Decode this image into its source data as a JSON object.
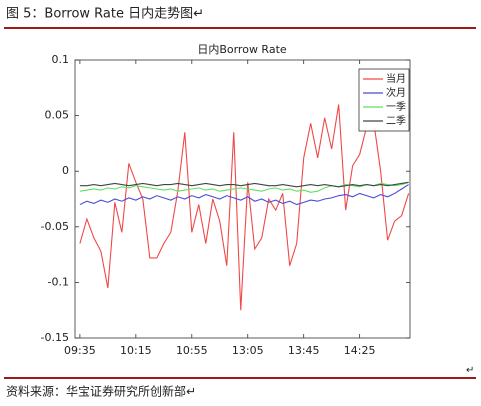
{
  "header": {
    "title": "图 5：Borrow Rate 日内走势图↵"
  },
  "chart_data": {
    "type": "line",
    "title": "日内Borrow Rate",
    "x": [
      0,
      1,
      2,
      3,
      4,
      5,
      6,
      7,
      8,
      9,
      10,
      11,
      12,
      13,
      14,
      15,
      16,
      17,
      18,
      19,
      20,
      21,
      22,
      23,
      24,
      25,
      26,
      27,
      28,
      29,
      30,
      31,
      32,
      33,
      34,
      35,
      36,
      37,
      38,
      39,
      40,
      41,
      42,
      43,
      44,
      45,
      46,
      47
    ],
    "xlim": [
      -0.7,
      47.2
    ],
    "xticks": [
      {
        "value": 0,
        "label": "09:35"
      },
      {
        "value": 8,
        "label": "10:15"
      },
      {
        "value": 16,
        "label": "10:55"
      },
      {
        "value": 24,
        "label": "13:05"
      },
      {
        "value": 32,
        "label": "13:45"
      },
      {
        "value": 40,
        "label": "14:25"
      }
    ],
    "ylim": [
      -0.15,
      0.1
    ],
    "yticks": [
      0.1,
      0.05,
      0,
      -0.05,
      -0.1,
      -0.15
    ],
    "grid": false,
    "legend": "upper right",
    "series": [
      {
        "name": "当月",
        "color": "#f04848",
        "values": [
          -0.065,
          -0.043,
          -0.06,
          -0.072,
          -0.105,
          -0.028,
          -0.055,
          0.007,
          -0.01,
          -0.025,
          -0.078,
          -0.078,
          -0.065,
          -0.055,
          -0.018,
          0.035,
          -0.055,
          -0.03,
          -0.065,
          -0.025,
          -0.045,
          -0.085,
          0.035,
          -0.125,
          -0.01,
          -0.07,
          -0.06,
          -0.025,
          -0.035,
          -0.02,
          -0.085,
          -0.065,
          0.012,
          0.043,
          0.012,
          0.048,
          0.02,
          0.06,
          -0.035,
          0.005,
          0.015,
          0.04,
          0.045,
          0.0,
          -0.062,
          -0.045,
          -0.04,
          -0.02
        ]
      },
      {
        "name": "次月",
        "color": "#4a4ad8",
        "values": [
          -0.03,
          -0.027,
          -0.029,
          -0.026,
          -0.028,
          -0.025,
          -0.027,
          -0.024,
          -0.026,
          -0.023,
          -0.025,
          -0.022,
          -0.024,
          -0.026,
          -0.023,
          -0.025,
          -0.022,
          -0.024,
          -0.021,
          -0.023,
          -0.025,
          -0.022,
          -0.024,
          -0.026,
          -0.023,
          -0.027,
          -0.025,
          -0.028,
          -0.026,
          -0.029,
          -0.027,
          -0.03,
          -0.028,
          -0.026,
          -0.027,
          -0.025,
          -0.024,
          -0.022,
          -0.021,
          -0.023,
          -0.02,
          -0.022,
          -0.024,
          -0.021,
          -0.023,
          -0.02,
          -0.016,
          -0.012
        ]
      },
      {
        "name": "一季",
        "color": "#5ee05e",
        "values": [
          -0.018,
          -0.017,
          -0.016,
          -0.017,
          -0.015,
          -0.016,
          -0.014,
          -0.015,
          -0.013,
          -0.014,
          -0.015,
          -0.016,
          -0.017,
          -0.016,
          -0.018,
          -0.017,
          -0.016,
          -0.015,
          -0.017,
          -0.016,
          -0.018,
          -0.017,
          -0.016,
          -0.015,
          -0.016,
          -0.017,
          -0.018,
          -0.016,
          -0.015,
          -0.017,
          -0.016,
          -0.018,
          -0.017,
          -0.019,
          -0.018,
          -0.015,
          -0.013,
          -0.014,
          -0.012,
          -0.013,
          -0.014,
          -0.012,
          -0.013,
          -0.011,
          -0.012,
          -0.013,
          -0.012,
          -0.01
        ]
      },
      {
        "name": "二季",
        "color": "#3c4a3c",
        "values": [
          -0.013,
          -0.013,
          -0.012,
          -0.013,
          -0.012,
          -0.011,
          -0.012,
          -0.013,
          -0.012,
          -0.011,
          -0.012,
          -0.013,
          -0.012,
          -0.012,
          -0.011,
          -0.012,
          -0.013,
          -0.012,
          -0.011,
          -0.012,
          -0.013,
          -0.012,
          -0.012,
          -0.013,
          -0.012,
          -0.011,
          -0.012,
          -0.013,
          -0.013,
          -0.012,
          -0.013,
          -0.014,
          -0.013,
          -0.012,
          -0.013,
          -0.012,
          -0.013,
          -0.014,
          -0.013,
          -0.012,
          -0.013,
          -0.012,
          -0.013,
          -0.012,
          -0.013,
          -0.012,
          -0.011,
          -0.01
        ]
      }
    ]
  },
  "end_mark": "↵",
  "footer": {
    "source": "资料来源：华宝证券研究所创新部↵"
  }
}
